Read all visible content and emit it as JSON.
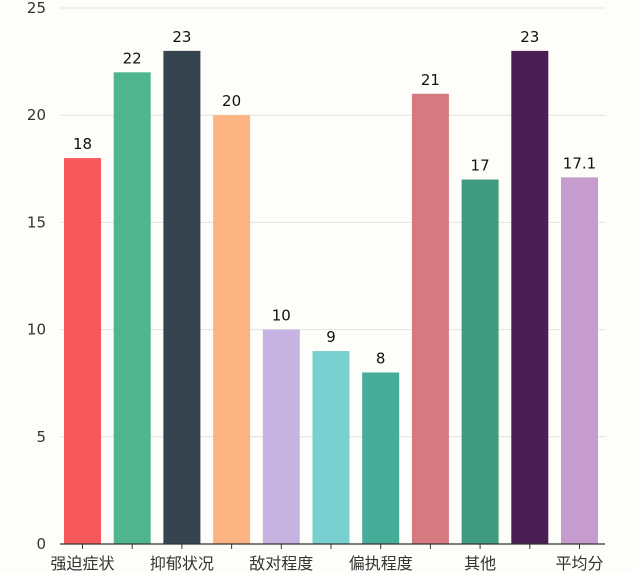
{
  "chart_data": {
    "type": "bar",
    "title": "",
    "xlabel": "",
    "ylabel": "",
    "ylim": [
      0,
      25
    ],
    "yticks": [
      0,
      5,
      10,
      15,
      20,
      25
    ],
    "grid": true,
    "categories": [
      "强迫症状",
      "",
      "抑郁状况",
      "",
      "敌对程度",
      "",
      "偏执程度",
      "",
      "其他",
      "",
      "平均分"
    ],
    "values": [
      18,
      22,
      23,
      20,
      10,
      9,
      8,
      21,
      17,
      23,
      17.1
    ],
    "value_labels": [
      "18",
      "22",
      "23",
      "20",
      "10",
      "9",
      "8",
      "21",
      "17",
      "23",
      "17.1"
    ],
    "colors": [
      "#f7585c",
      "#4fb58f",
      "#35444f",
      "#fbb482",
      "#c7b3e2",
      "#79d0d0",
      "#46ab97",
      "#d67a81",
      "#3f9c80",
      "#4b1f55",
      "#c59ccd"
    ]
  }
}
